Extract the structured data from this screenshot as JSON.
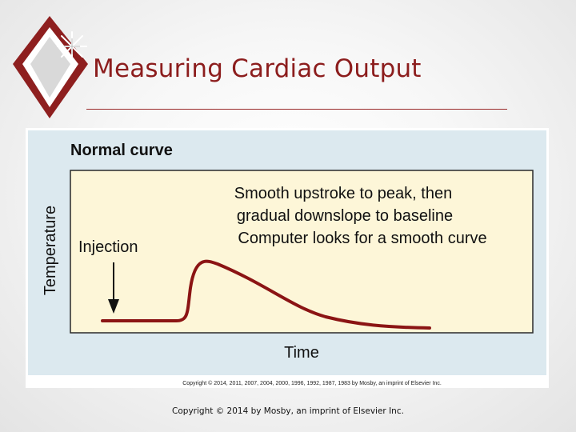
{
  "slide": {
    "title": "Measuring Cardiac Output",
    "footer_copyright": "Copyright © 2014 by Mosby, an imprint of Elsevier Inc."
  },
  "figure": {
    "heading": "Normal curve",
    "annotation_lines": [
      "Smooth upstroke to peak, then",
      "gradual downslope to baseline",
      "Computer looks for a smooth curve"
    ],
    "injection_label": "Injection",
    "xlabel": "Time",
    "ylabel": "Temperature",
    "figure_copyright": "Copyright © 2014, 2011, 2007, 2004, 2000, 1996, 1992, 1987, 1983 by Mosby, an imprint of Elsevier Inc."
  },
  "colors": {
    "title": "#8c1d1d",
    "panel_bg": "#dce9ef",
    "plot_bg": "#fdf6d8",
    "curve": "#8b1414",
    "arrow": "#111111"
  }
}
